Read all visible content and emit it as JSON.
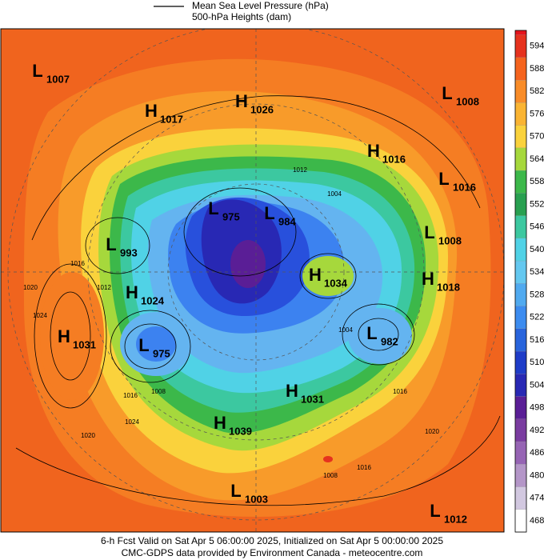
{
  "legend": {
    "items": [
      "Mean Sea Level Pressure (hPa)",
      "500-hPa Heights (dam)"
    ]
  },
  "colorbar": {
    "ticks": [
      594,
      588,
      582,
      576,
      570,
      564,
      558,
      552,
      546,
      540,
      534,
      528,
      522,
      516,
      510,
      504,
      498,
      492,
      486,
      480,
      474,
      468
    ],
    "colors": [
      "#e6321e",
      "#f5641e",
      "#f88c28",
      "#fab432",
      "#fad23c",
      "#a6d83c",
      "#3cb84a",
      "#28a050",
      "#3cc8a0",
      "#50d2e6",
      "#64c8f0",
      "#50aaf0",
      "#3c8cf0",
      "#2864dc",
      "#1e3cc8",
      "#2828b4",
      "#5a1e96",
      "#7a3ca0",
      "#9664b4",
      "#b496c8",
      "#d2c8e0",
      "#ffffff"
    ]
  },
  "centers": [
    {
      "type": "L",
      "value": 1007
    },
    {
      "type": "H",
      "value": 1017
    },
    {
      "type": "H",
      "value": 1026
    },
    {
      "type": "L",
      "value": 1008
    },
    {
      "type": "H",
      "value": 1016
    },
    {
      "type": "L",
      "value": 1016
    },
    {
      "type": "L",
      "value": 975
    },
    {
      "type": "L",
      "value": 984
    },
    {
      "type": "L",
      "value": 1008
    },
    {
      "type": "L",
      "value": 993
    },
    {
      "type": "H",
      "value": 1034
    },
    {
      "type": "H",
      "value": 1018
    },
    {
      "type": "H",
      "value": 1024
    },
    {
      "type": "H",
      "value": 1031
    },
    {
      "type": "L",
      "value": 975
    },
    {
      "type": "L",
      "value": 982
    },
    {
      "type": "H",
      "value": 1031
    },
    {
      "type": "H",
      "value": 1039
    },
    {
      "type": "L",
      "value": 1003
    },
    {
      "type": "L",
      "value": 1012
    }
  ],
  "isobar_labels": [
    1012,
    1004,
    1016,
    1020,
    1024,
    1012,
    1004,
    1008,
    1016,
    1020,
    1024,
    1016,
    1020,
    1008,
    1016
  ],
  "footer": {
    "line1": "6-h Fcst Valid on Sat Apr  5 06:00:00 2025, Initialized on Sat Apr  5 00:00:00 2025",
    "line2": "CMC-GDPS data provided by Environment Canada - meteocentre.com"
  }
}
